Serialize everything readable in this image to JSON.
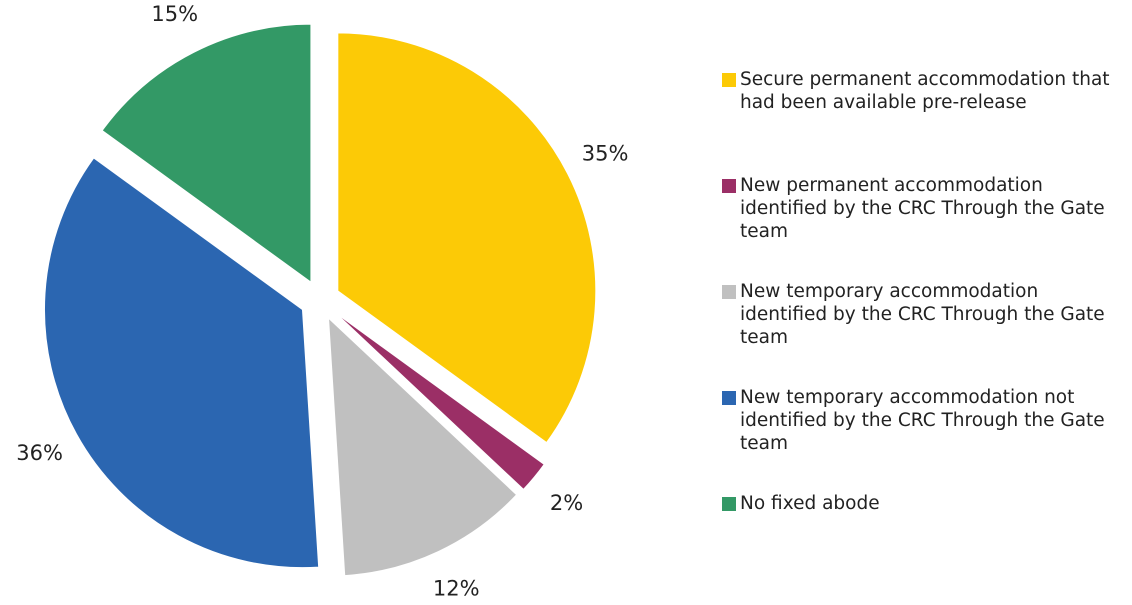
{
  "chart_data": {
    "type": "pie",
    "categories": [
      "Secure permanent accommodation that had been available pre-release",
      "New permanent accommodation identified by the CRC Through the Gate team",
      "New temporary accommodation identified by the CRC Through the Gate team",
      "New temporary accommodation not identified by the CRC Through the Gate team",
      "No fixed abode"
    ],
    "values": [
      35,
      2,
      12,
      36,
      15
    ],
    "value_labels": [
      "35%",
      "2%",
      "12%",
      "36%",
      "15%"
    ],
    "colors": [
      "#fcca06",
      "#9b2f66",
      "#c0c0c0",
      "#2b66b1",
      "#339966"
    ],
    "legend": "right"
  }
}
